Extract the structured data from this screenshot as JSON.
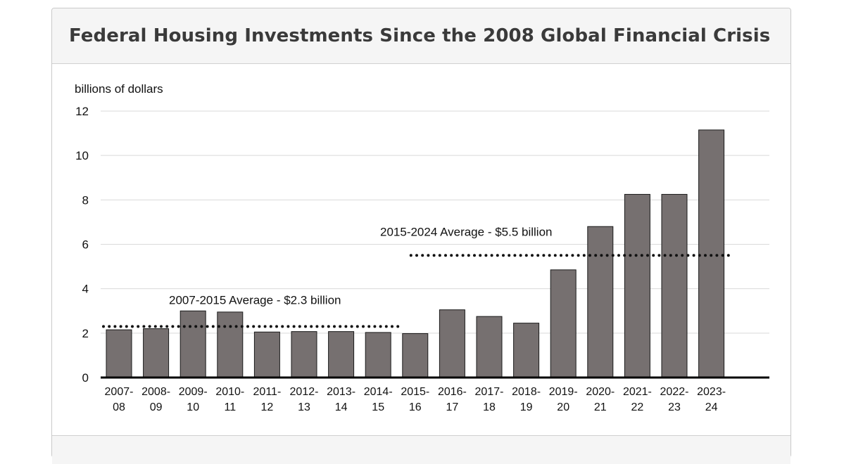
{
  "header": {
    "title": "Federal Housing Investments Since the 2008 Global Financial Crisis"
  },
  "chart_data": {
    "type": "bar",
    "ylabel": "billions of dollars",
    "ylim": [
      0,
      12
    ],
    "yticks": [
      0,
      2,
      4,
      6,
      8,
      10,
      12
    ],
    "grid": true,
    "bar_color": "#767070",
    "categories": [
      [
        "2007-",
        "08"
      ],
      [
        "2008-",
        "09"
      ],
      [
        "2009-",
        "10"
      ],
      [
        "2010-",
        "11"
      ],
      [
        "2011-",
        "12"
      ],
      [
        "2012-",
        "13"
      ],
      [
        "2013-",
        "14"
      ],
      [
        "2014-",
        "15"
      ],
      [
        "2015-",
        "16"
      ],
      [
        "2016-",
        "17"
      ],
      [
        "2017-",
        "18"
      ],
      [
        "2018-",
        "19"
      ],
      [
        "2019-",
        "20"
      ],
      [
        "2020-",
        "21"
      ],
      [
        "2021-",
        "22"
      ],
      [
        "2022-",
        "23"
      ],
      [
        "2023-",
        "24"
      ]
    ],
    "values": [
      2.15,
      2.2,
      3.0,
      2.95,
      2.05,
      2.07,
      2.07,
      2.03,
      1.98,
      3.05,
      2.75,
      2.45,
      4.85,
      6.8,
      8.25,
      8.25,
      11.15
    ],
    "averages": [
      {
        "label": "2007-2015 Average - $2.3 billion",
        "value": 2.3,
        "from_index": 0,
        "to_index": 7
      },
      {
        "label": "2015-2024 Average - $5.5 billion",
        "value": 5.5,
        "from_index": 8,
        "to_index": 16
      }
    ]
  }
}
